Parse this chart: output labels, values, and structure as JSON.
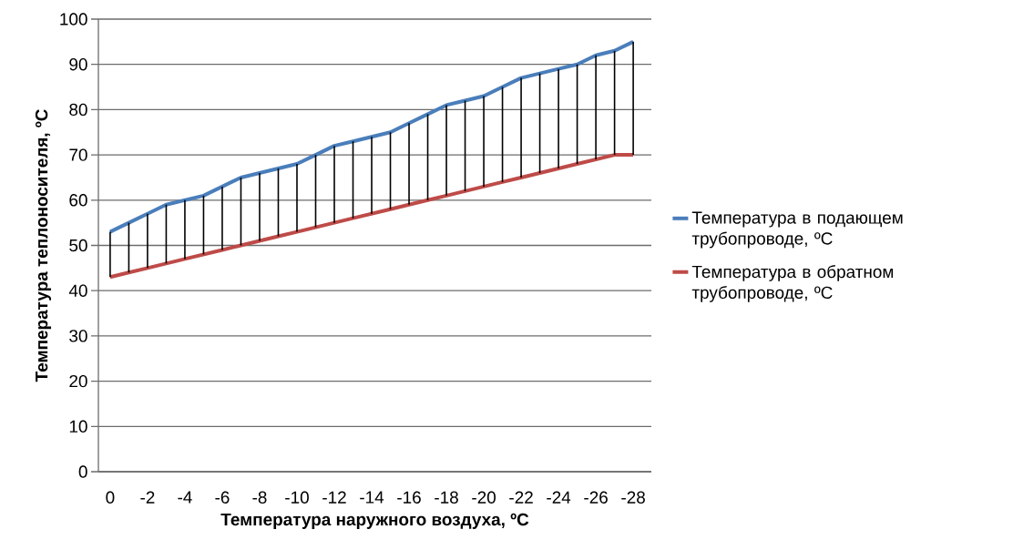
{
  "chart_data": {
    "type": "line",
    "xlabel": "Температура наружного воздуха, ºС",
    "ylabel": "Температура теплоносителя, ºС",
    "categories": [
      "0",
      null,
      "-2",
      null,
      "-4",
      null,
      "-6",
      null,
      "-8",
      null,
      "-10",
      null,
      "-12",
      null,
      "-14",
      null,
      "-16",
      null,
      "-18",
      null,
      "-20",
      null,
      "-22",
      null,
      "-24",
      null,
      "-26",
      null,
      "-28"
    ],
    "series": [
      {
        "name": "Температура в подающем трубопроводе, ºС",
        "color": "#4a7ebb",
        "values": [
          53,
          55,
          57,
          59,
          60,
          61,
          63,
          65,
          66,
          67,
          68,
          70,
          72,
          73,
          74,
          75,
          77,
          79,
          81,
          82,
          83,
          85,
          87,
          88,
          89,
          90,
          92,
          93,
          95
        ],
        "errors": [
          [
            43,
            53
          ],
          [
            44,
            55
          ],
          [
            45,
            57
          ],
          [
            46,
            59
          ],
          [
            47,
            60
          ],
          [
            48,
            61
          ],
          [
            49,
            63
          ],
          [
            50,
            65
          ],
          [
            51,
            66
          ],
          [
            52,
            67
          ],
          [
            53,
            68
          ],
          [
            54,
            70
          ],
          [
            55,
            72
          ],
          [
            56,
            73
          ],
          [
            57,
            74
          ],
          [
            58,
            75
          ],
          [
            59,
            77
          ],
          [
            60,
            79
          ],
          [
            61,
            81
          ],
          [
            62,
            82
          ],
          [
            63,
            83
          ],
          [
            64,
            85
          ],
          [
            65,
            87
          ],
          [
            66,
            88
          ],
          [
            67,
            89
          ],
          [
            68,
            90
          ],
          [
            69,
            92
          ],
          [
            70,
            93
          ],
          [
            70,
            95
          ]
        ]
      },
      {
        "name": "Температура в обратном трубопроводе, ºС",
        "color": "#be4b48",
        "values": [
          43,
          44,
          45,
          46,
          47,
          48,
          49,
          50,
          51,
          52,
          53,
          54,
          55,
          56,
          57,
          58,
          59,
          60,
          61,
          62,
          63,
          64,
          65,
          66,
          67,
          68,
          69,
          70,
          70
        ]
      }
    ],
    "ylim": [
      0,
      100
    ],
    "yticks": [
      0,
      10,
      20,
      30,
      40,
      50,
      60,
      70,
      80,
      90,
      100
    ],
    "grid": "y",
    "legend": "right",
    "marker": "none",
    "line_style": "solid"
  }
}
